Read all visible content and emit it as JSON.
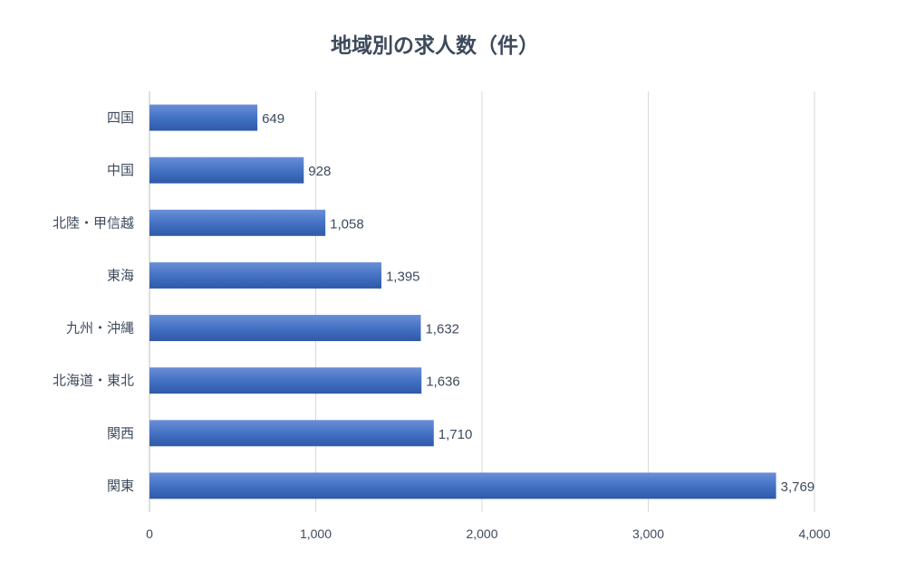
{
  "chart_data": {
    "type": "bar",
    "orientation": "horizontal",
    "title": "地域別の求人数（件）",
    "xlabel": "",
    "ylabel": "",
    "categories": [
      "四国",
      "中国",
      "北陸・甲信越",
      "東海",
      "九州・沖縄",
      "北海道・東北",
      "関西",
      "関東"
    ],
    "values": [
      649,
      928,
      1058,
      1395,
      1632,
      1636,
      1710,
      3769
    ],
    "data_labels": [
      "649",
      "928",
      "1,058",
      "1,395",
      "1,632",
      "1,636",
      "1,710",
      "3,769"
    ],
    "xlim": [
      0,
      4000
    ],
    "xticks": [
      0,
      1000,
      2000,
      3000,
      4000
    ],
    "xtick_labels": [
      "0",
      "1,000",
      "2,000",
      "3,000",
      "4,000"
    ],
    "grid": true,
    "legend": "none",
    "bar_color": "#4472c4"
  }
}
